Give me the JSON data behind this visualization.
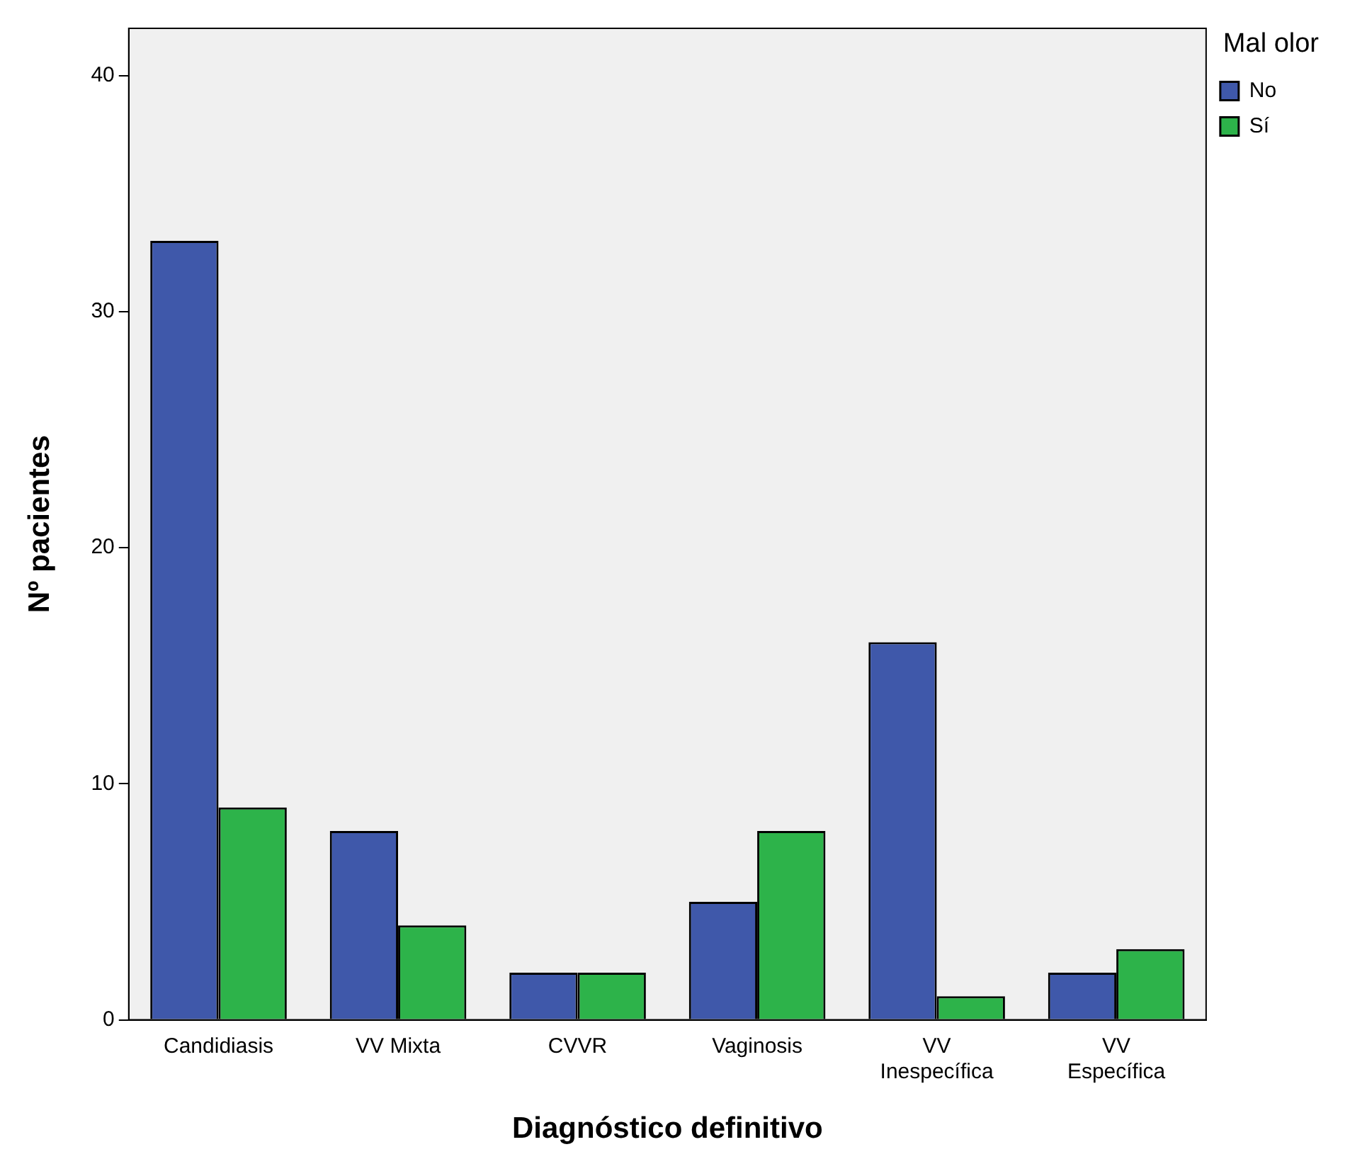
{
  "chart_data": {
    "type": "bar",
    "xlabel": "Diagnóstico definitivo",
    "ylabel": "Nº pacientes",
    "legend_title": "Mal olor",
    "legend": "top right",
    "categories": [
      "Candidiasis",
      "VV Mixta",
      "CVVR",
      "Vaginosis",
      "VV Inespecífica",
      "VV Específica"
    ],
    "series": [
      {
        "name": "No",
        "color": "#3f58aa",
        "values": [
          33,
          8,
          2,
          5,
          16,
          2
        ]
      },
      {
        "name": "Sí",
        "color": "#2db34a",
        "values": [
          9,
          4,
          2,
          8,
          1,
          3
        ]
      }
    ],
    "ylim": [
      0,
      42
    ],
    "yticks": [
      0,
      10,
      20,
      30,
      40
    ],
    "grid": false
  }
}
